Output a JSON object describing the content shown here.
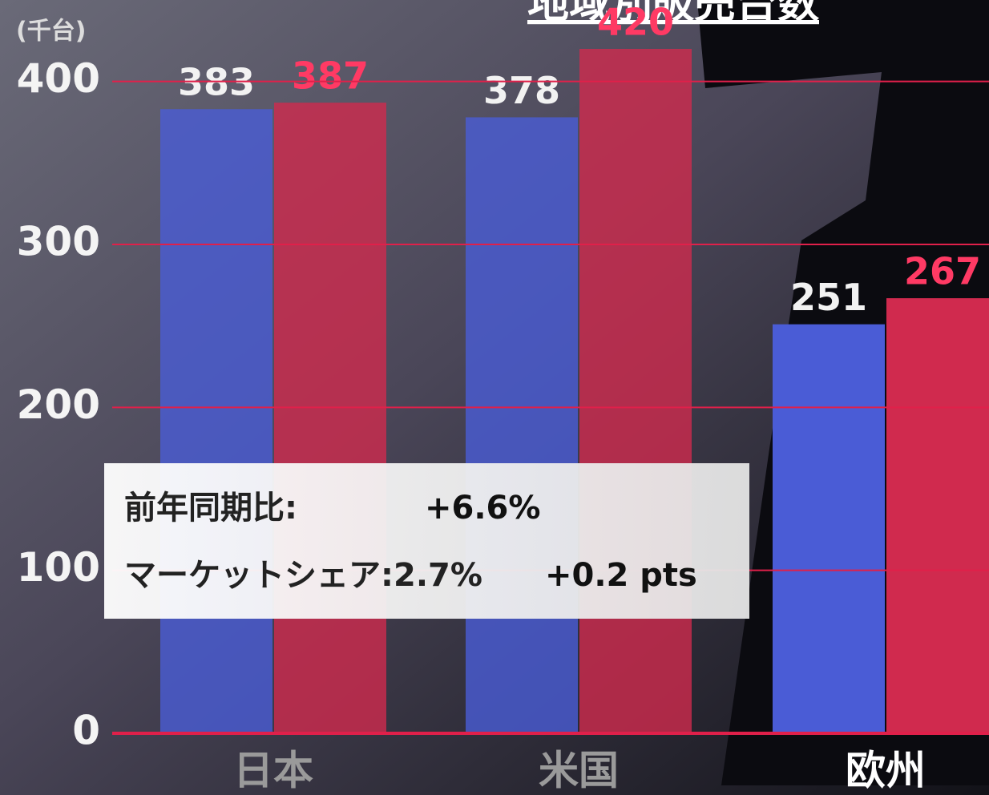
{
  "chart_data": {
    "type": "bar",
    "title": "地域別販売台数",
    "unit_label": "(千台)",
    "categories": [
      "日本",
      "米国",
      "欧州"
    ],
    "series": [
      {
        "color": "#4a5cd6",
        "values": [
          383,
          378,
          251
        ]
      },
      {
        "color": "#d02a4e",
        "values": [
          387,
          420,
          267
        ]
      }
    ],
    "ylim": [
      0,
      450
    ],
    "yticks": [
      0,
      100,
      200,
      300,
      400
    ],
    "grid": true,
    "annotations": [
      "前年同期比:",
      "+6.6%",
      "マーケットシェア:2.7%",
      "+0.2 pts"
    ]
  }
}
